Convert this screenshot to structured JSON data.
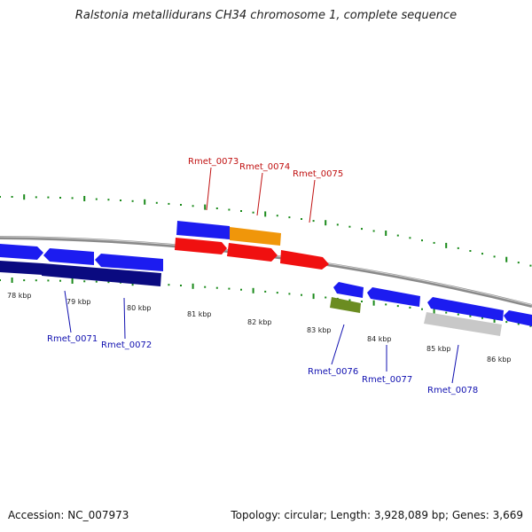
{
  "title": "Ralstonia metallidurans CH34 chromosome 1, complete sequence",
  "footer": {
    "accession": "Accession: NC_007973",
    "summary": "Topology: circular; Length: 3,928,089 bp; Genes: 3,669"
  },
  "colors": {
    "backbone": "#808080",
    "tick": "#1a8a1a",
    "forward_gene": "#1c1cf0",
    "selected_gene": "#0a0a80",
    "rRNA_gene": "#f0960a",
    "red_gene": "#f01010",
    "green_gene": "#6b8c21",
    "grey_gene": "#c8c8c8",
    "label_top": "#c01010",
    "label_bottom": "#1010b0"
  },
  "ruler_labels": [
    "78 kbp",
    "79 kbp",
    "80 kbp",
    "81 kbp",
    "82 kbp",
    "83 kbp",
    "84 kbp",
    "85 kbp",
    "86 kbp"
  ],
  "gene_labels_top": [
    "Rmet_0073",
    "Rmet_0074",
    "Rmet_0075"
  ],
  "gene_labels_bottom": [
    "Rmet_0071",
    "Rmet_0072",
    "Rmet_0076",
    "Rmet_0077",
    "Rmet_0078"
  ]
}
